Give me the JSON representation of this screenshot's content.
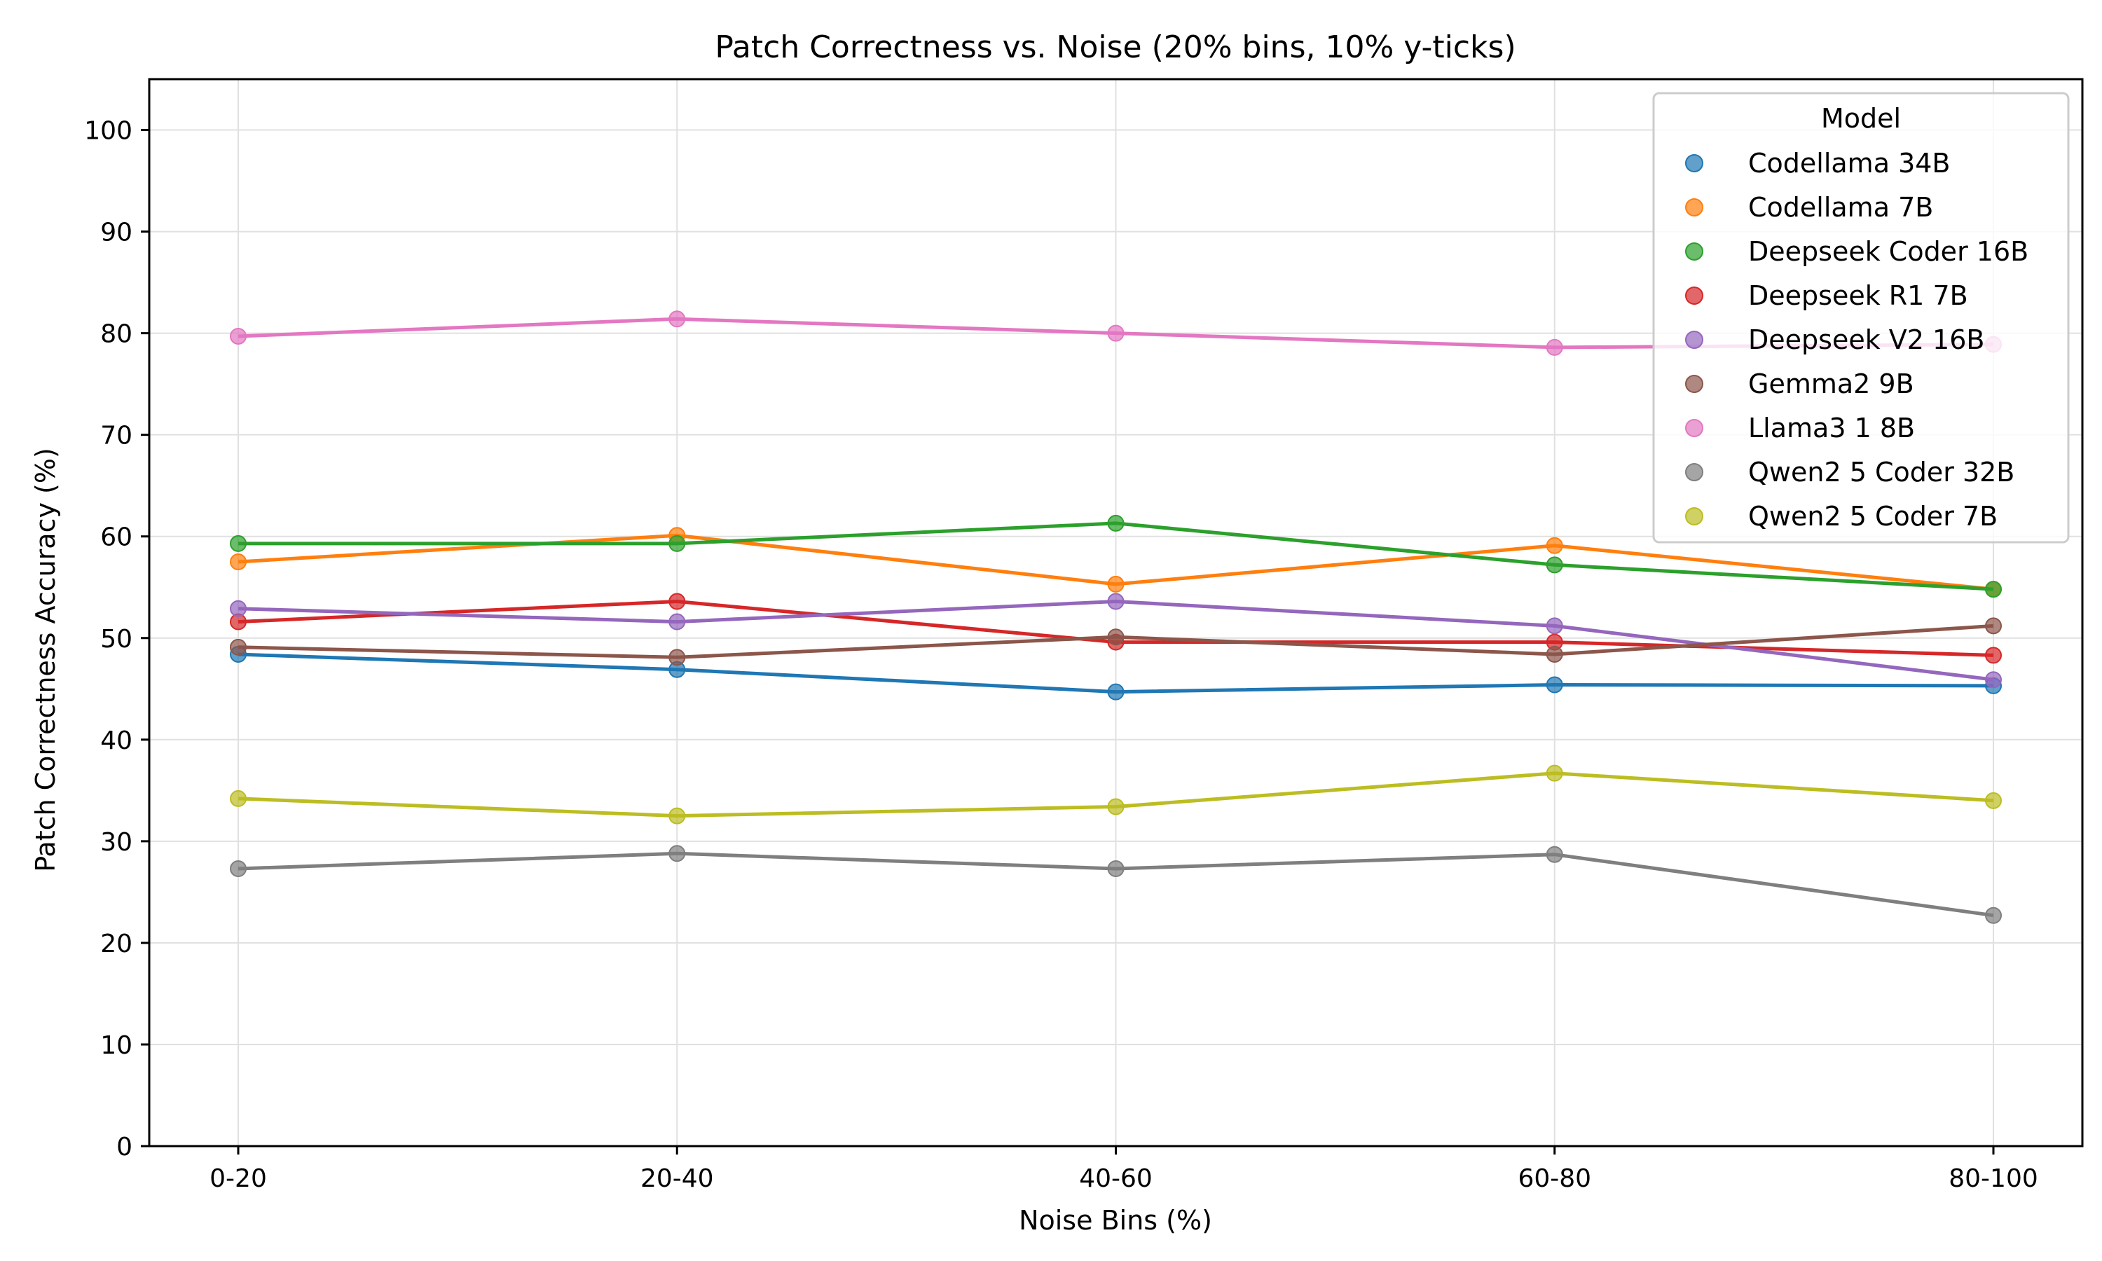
{
  "chart_data": {
    "type": "line",
    "title": "Patch Correctness vs. Noise (20% bins, 10% y-ticks)",
    "xlabel": "Noise Bins (%)",
    "ylabel": "Patch Correctness Accuracy (%)",
    "categories": [
      "0-20",
      "20-40",
      "40-60",
      "60-80",
      "80-100"
    ],
    "ylim": [
      0,
      105
    ],
    "yticks": [
      0,
      10,
      20,
      30,
      40,
      50,
      60,
      70,
      80,
      90,
      100
    ],
    "grid": true,
    "legend": {
      "title": "Model",
      "placement": "top-right"
    },
    "series": [
      {
        "name": "Codellama 34B",
        "color": "#1f77b4",
        "values": [
          48.4,
          46.9,
          44.7,
          45.4,
          45.3
        ]
      },
      {
        "name": "Codellama 7B",
        "color": "#ff7f0e",
        "values": [
          57.5,
          60.1,
          55.3,
          59.1,
          54.8
        ]
      },
      {
        "name": "Deepseek Coder 16B",
        "color": "#2ca02c",
        "values": [
          59.3,
          59.3,
          61.3,
          57.2,
          54.8
        ]
      },
      {
        "name": "Deepseek R1 7B",
        "color": "#d62728",
        "values": [
          51.6,
          53.6,
          49.6,
          49.6,
          48.3
        ]
      },
      {
        "name": "Deepseek V2 16B",
        "color": "#9467bd",
        "values": [
          52.9,
          51.6,
          53.6,
          51.2,
          45.9
        ]
      },
      {
        "name": "Gemma2 9B",
        "color": "#8c564b",
        "values": [
          49.1,
          48.1,
          50.1,
          48.4,
          51.2
        ]
      },
      {
        "name": "Llama3 1 8B",
        "color": "#e377c2",
        "values": [
          79.7,
          81.4,
          80.0,
          78.6,
          78.9
        ]
      },
      {
        "name": "Qwen2 5 Coder 32B",
        "color": "#7f7f7f",
        "values": [
          27.3,
          28.8,
          27.3,
          28.7,
          22.7
        ]
      },
      {
        "name": "Qwen2 5 Coder 7B",
        "color": "#bcbd22",
        "values": [
          34.2,
          32.5,
          33.4,
          36.7,
          34.0
        ]
      }
    ]
  }
}
